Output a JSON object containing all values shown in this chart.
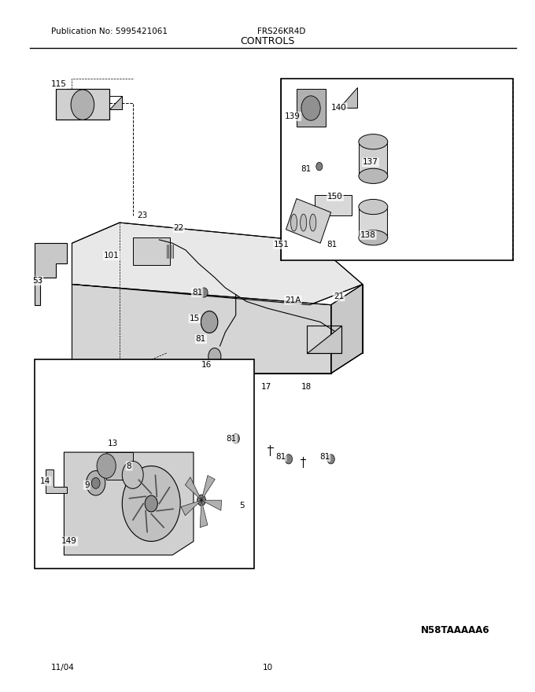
{
  "title": "CONTROLS",
  "pub_no": "Publication No: 5995421061",
  "model": "FRS26KR4D",
  "date": "11/04",
  "page": "10",
  "diagram_code": "N58TAAAAA6",
  "bg_color": "#ffffff",
  "line_color": "#000000",
  "label_fontsize": 7.5,
  "title_fontsize": 9,
  "header_fontsize": 7.5
}
